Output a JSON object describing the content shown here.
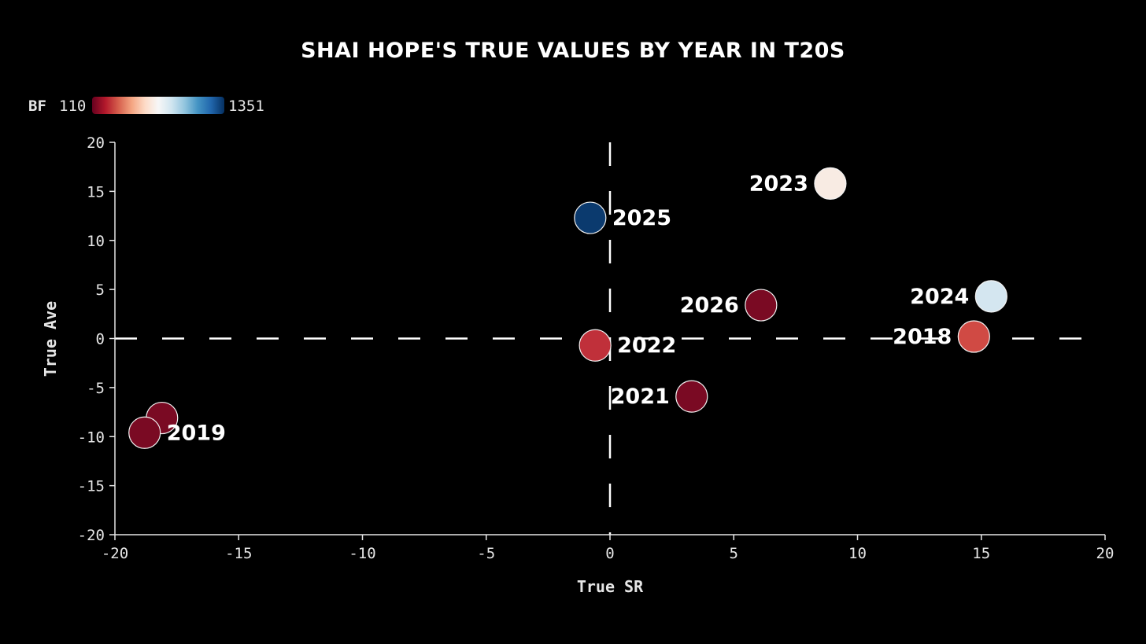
{
  "chart_data": {
    "type": "scatter",
    "title": "SHAI HOPE'S TRUE VALUES BY YEAR IN T20S",
    "xlabel": "True SR",
    "ylabel": "True Ave",
    "xlim": [
      -20,
      20
    ],
    "ylim": [
      -20,
      20
    ],
    "xticks": [
      "-20",
      "-15",
      "-10",
      "-5",
      "0",
      "5",
      "10",
      "15",
      "20"
    ],
    "yticks": [
      "20",
      "15",
      "10",
      "5",
      "0",
      "-5",
      "-10",
      "-15",
      "-20"
    ],
    "reference_lines": {
      "x": 0,
      "y": 0,
      "style": "dashed"
    },
    "grid": false,
    "legend": {
      "title": "BF",
      "min_label": "110",
      "max_label": "1351",
      "min": 110,
      "max": 1351,
      "placement": "top-left",
      "colormap": [
        "#67001f",
        "#b2182b",
        "#d6604d",
        "#f4a582",
        "#fddbc7",
        "#f7f7f7",
        "#d1e5f0",
        "#92c5de",
        "#4393c3",
        "#2166ac",
        "#053061"
      ]
    },
    "points": [
      {
        "label": "2023",
        "x": 8.9,
        "y": 15.8,
        "color": "#f8ebe3",
        "label_side": "left"
      },
      {
        "label": "2025",
        "x": -0.8,
        "y": 12.3,
        "color": "#0b3a6e",
        "label_side": "right"
      },
      {
        "label": "2026",
        "x": 6.1,
        "y": 3.4,
        "color": "#7a0a23",
        "label_side": "left"
      },
      {
        "label": "2024",
        "x": 15.4,
        "y": 4.3,
        "color": "#d4e6f0",
        "label_side": "left"
      },
      {
        "label": "2018",
        "x": 14.7,
        "y": 0.2,
        "color": "#d04a44",
        "label_side": "left"
      },
      {
        "label": "2022",
        "x": -0.6,
        "y": -0.7,
        "color": "#c0303a",
        "label_side": "right"
      },
      {
        "label": "2021",
        "x": 3.3,
        "y": -5.9,
        "color": "#7a0a23",
        "label_side": "left"
      },
      {
        "label": "",
        "x": -18.1,
        "y": -8.1,
        "color": "#7a0a23",
        "label_side": "none"
      },
      {
        "label": "2019",
        "x": -18.8,
        "y": -9.6,
        "color": "#7a0a23",
        "label_side": "right"
      }
    ]
  }
}
